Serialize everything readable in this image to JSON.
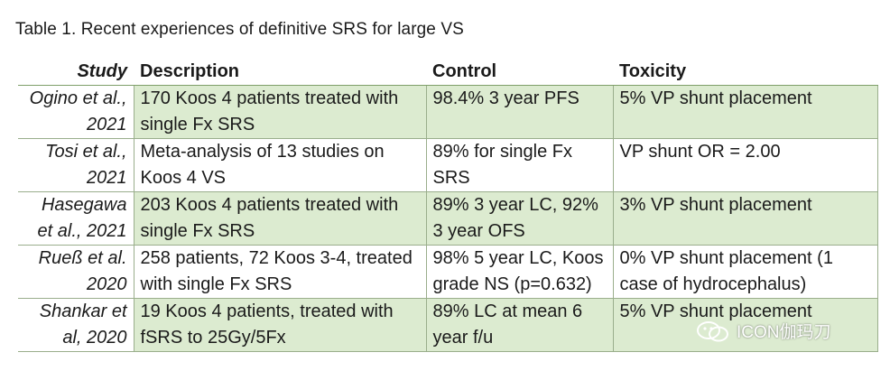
{
  "caption": "Table 1. Recent experiences of definitive SRS for large VS",
  "headers": {
    "study": "Study",
    "description": "Description",
    "control": "Control",
    "toxicity": "Toxicity"
  },
  "rows": [
    {
      "study": "Ogino et al., 2021",
      "description": "170 Koos 4 patients treated with single Fx SRS",
      "control": "98.4% 3 year PFS",
      "toxicity": "5% VP shunt placement"
    },
    {
      "study": "Tosi et al., 2021",
      "description": "Meta-analysis of 13 studies on Koos 4 VS",
      "control": "89% for single Fx SRS",
      "toxicity": "VP shunt OR = 2.00"
    },
    {
      "study": "Hasegawa et al., 2021",
      "description": "203 Koos 4 patients treated with single Fx SRS",
      "control": "89% 3 year LC, 92% 3 year OFS",
      "toxicity": "3% VP shunt placement"
    },
    {
      "study": "Rueß et al. 2020",
      "description": "258 patients, 72 Koos 3-4, treated with single Fx SRS",
      "control": "98% 5 year LC, Koos grade NS (p=0.632)",
      "toxicity": "0% VP shunt placement (1 case of hydrocephalus)"
    },
    {
      "study": "Shankar et al, 2020",
      "description": "19 Koos 4 patients, treated with fSRS to 25Gy/5Fx",
      "control": "89% LC at mean 6 year f/u",
      "toxicity": "5% VP shunt placement"
    }
  ],
  "watermark": {
    "text": "ICON伽玛刀",
    "icon": "wechat-icon"
  }
}
